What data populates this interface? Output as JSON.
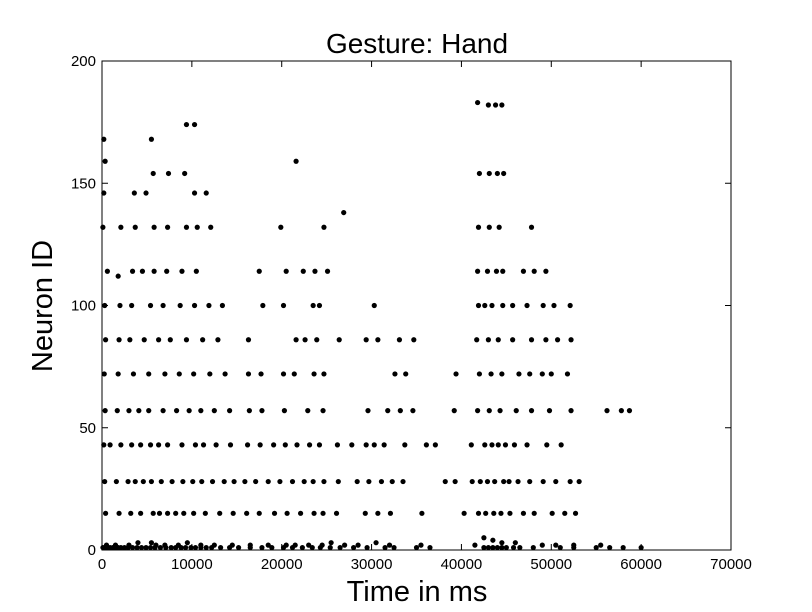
{
  "chart_data": {
    "type": "scatter",
    "title": "Gesture: Hand",
    "xlabel": "Time in ms",
    "ylabel": "Neuron ID",
    "xlim": [
      0,
      70000
    ],
    "ylim": [
      0,
      200
    ],
    "xticks": [
      0,
      10000,
      20000,
      30000,
      40000,
      50000,
      60000,
      70000
    ],
    "yticks": [
      0,
      50,
      100,
      150,
      200
    ],
    "xtick_labels": [
      "0",
      "10000",
      "20000",
      "30000",
      "40000",
      "50000",
      "60000",
      "70000"
    ],
    "ytick_labels": [
      "0",
      "50",
      "100",
      "150",
      "200"
    ],
    "grid": false,
    "marker_color": "#000000",
    "series": [
      {
        "x": [
          100,
          300,
          600,
          900,
          1200,
          1500,
          1800,
          2100,
          2500,
          2900,
          3400,
          3900,
          4400,
          4900,
          5400,
          5900,
          6500,
          7100,
          7700,
          8200,
          8800,
          9300,
          9900,
          10400,
          11000,
          11600,
          12200,
          13200,
          14200,
          15200,
          16500,
          17800,
          18900,
          20200,
          21200,
          22300,
          23400,
          24300,
          25400,
          26500,
          28000,
          29500,
          31500,
          32500,
          35000,
          36500,
          42500,
          43000,
          43500,
          44000,
          44500,
          45000,
          45800,
          46500,
          48000,
          51000,
          52500,
          55000,
          56500,
          58000,
          60000,
          500,
          1500,
          3000,
          4000,
          5500,
          6000,
          7000,
          8500,
          9500,
          11000,
          12500,
          14500,
          16500,
          18500,
          20500,
          21500,
          23000,
          24500,
          25500,
          27000,
          28500,
          30500,
          32000,
          35500,
          41500,
          42500,
          43500,
          44500,
          46000,
          49000,
          50500,
          52500,
          55500,
          400,
          1900,
          3200,
          4300,
          5700,
          6400,
          7300,
          8200,
          9100,
          10200,
          11500,
          13100,
          14600,
          16100,
          17500,
          19200,
          20600,
          22100,
          23600,
          24600,
          26100,
          29300,
          30700,
          32100,
          35600,
          40300,
          41900,
          42700,
          43600,
          44400,
          45400,
          46900,
          48100,
          50100,
          51500,
          52700,
          300,
          1600,
          2900,
          3700,
          4600,
          5500,
          6600,
          7800,
          9000,
          10100,
          11100,
          12300,
          13600,
          14700,
          15900,
          17100,
          18500,
          19800,
          21200,
          22500,
          23500,
          24700,
          26300,
          28400,
          29700,
          31100,
          32300,
          33500,
          38200,
          39300,
          41200,
          42100,
          42900,
          43700,
          44700,
          45300,
          46300,
          47600,
          49100,
          50500,
          52100,
          53100,
          200,
          900,
          2100,
          3300,
          4300,
          5400,
          6300,
          7300,
          8900,
          10400,
          11300,
          12700,
          14300,
          16200,
          17600,
          19100,
          20400,
          21700,
          23100,
          24200,
          26200,
          27800,
          29400,
          30300,
          31400,
          33700,
          36100,
          37100,
          41100,
          42600,
          43400,
          44100,
          44900,
          45900,
          47300,
          49500,
          51100,
          350,
          1700,
          3000,
          4100,
          5200,
          6800,
          8300,
          9700,
          11000,
          12500,
          14200,
          16400,
          17800,
          20300,
          22900,
          24600,
          29600,
          31800,
          33200,
          34600,
          39200,
          41800,
          43100,
          44300,
          46100,
          47800,
          49800,
          52200,
          56200,
          57800,
          58700,
          250,
          1800,
          3500,
          5200,
          7000,
          8600,
          10200,
          12000,
          13700,
          16300,
          17700,
          20200,
          21400,
          23600,
          24700,
          32600,
          33800,
          39400,
          42000,
          43300,
          44500,
          46400,
          47600,
          49000,
          50000,
          51800,
          400,
          1900,
          3100,
          4700,
          6300,
          7600,
          9400,
          11200,
          12900,
          16300,
          21600,
          22600,
          23900,
          26400,
          29400,
          30700,
          33100,
          34700,
          41700,
          43000,
          44100,
          45700,
          47800,
          49400,
          50700,
          52200,
          300,
          2000,
          3300,
          5400,
          6800,
          8700,
          10300,
          11900,
          13400,
          17900,
          20200,
          23500,
          24200,
          30300,
          41900,
          42600,
          43400,
          44600,
          45700,
          47300,
          49100,
          50300,
          52100,
          600,
          1800,
          3400,
          4500,
          5800,
          7200,
          8900,
          10500,
          17500,
          20500,
          22400,
          23700,
          25100,
          41800,
          42900,
          43900,
          44600,
          46900,
          48100,
          49400,
          100,
          2100,
          3700,
          5800,
          7300,
          9400,
          10600,
          12100,
          19900,
          24700,
          41900,
          43100,
          44200,
          47800,
          200,
          3600,
          4900,
          10300,
          11600,
          350,
          5700,
          7400,
          9200,
          21600,
          26900,
          200,
          5500,
          9400,
          10300,
          42000,
          43100,
          44000,
          44700,
          41800,
          43000,
          43800,
          44500
        ],
        "y": [
          1,
          1,
          1,
          1,
          1,
          1,
          1,
          1,
          1,
          1,
          1,
          1,
          1,
          1,
          1,
          1,
          1,
          1,
          1,
          1,
          1,
          1,
          1,
          1,
          1,
          1,
          1,
          1,
          1,
          1,
          1,
          1,
          1,
          1,
          1,
          1,
          1,
          1,
          1,
          1,
          1,
          1,
          1,
          1,
          1,
          1,
          1,
          1,
          1,
          1,
          1,
          1,
          1,
          1,
          1,
          1,
          1,
          1,
          1,
          1,
          1,
          2,
          2,
          2,
          3,
          3,
          2,
          2,
          2,
          3,
          2,
          2,
          2,
          2,
          2,
          2,
          2,
          2,
          2,
          3,
          2,
          2,
          3,
          2,
          2,
          2,
          5,
          4,
          3,
          3,
          2,
          2,
          2,
          2,
          15,
          15,
          15,
          15,
          15,
          15,
          15,
          15,
          15,
          15,
          15,
          15,
          15,
          15,
          15,
          15,
          15,
          15,
          15,
          15,
          15,
          15,
          15,
          15,
          15,
          15,
          15,
          15,
          15,
          15,
          15,
          15,
          15,
          15,
          15,
          15,
          28,
          28,
          28,
          28,
          28,
          28,
          28,
          28,
          28,
          28,
          28,
          28,
          28,
          28,
          28,
          28,
          28,
          28,
          28,
          28,
          28,
          28,
          28,
          28,
          28,
          28,
          28,
          28,
          28,
          28,
          28,
          28,
          28,
          28,
          28,
          28,
          28,
          28,
          28,
          28,
          28,
          28,
          43,
          43,
          43,
          43,
          43,
          43,
          43,
          43,
          43,
          43,
          43,
          43,
          43,
          43,
          43,
          43,
          43,
          43,
          43,
          43,
          43,
          43,
          43,
          43,
          43,
          43,
          43,
          43,
          43,
          43,
          43,
          43,
          43,
          43,
          43,
          43,
          43,
          57,
          57,
          57,
          57,
          57,
          57,
          57,
          57,
          57,
          57,
          57,
          57,
          57,
          57,
          57,
          57,
          57,
          57,
          57,
          57,
          57,
          57,
          57,
          57,
          57,
          57,
          57,
          57,
          57,
          57,
          57,
          72,
          72,
          72,
          72,
          72,
          72,
          72,
          72,
          72,
          72,
          72,
          72,
          72,
          72,
          72,
          72,
          72,
          72,
          72,
          72,
          72,
          72,
          72,
          72,
          72,
          72,
          86,
          86,
          86,
          86,
          86,
          86,
          86,
          86,
          86,
          86,
          86,
          86,
          86,
          86,
          86,
          86,
          86,
          86,
          86,
          86,
          86,
          86,
          86,
          86,
          86,
          86,
          100,
          100,
          100,
          100,
          100,
          100,
          100,
          100,
          100,
          100,
          100,
          100,
          100,
          100,
          100,
          100,
          100,
          100,
          100,
          100,
          100,
          100,
          100,
          114,
          112,
          114,
          114,
          114,
          114,
          114,
          114,
          114,
          114,
          114,
          114,
          114,
          114,
          114,
          114,
          114,
          114,
          114,
          114,
          132,
          132,
          132,
          132,
          132,
          132,
          132,
          132,
          132,
          132,
          132,
          132,
          132,
          132,
          146,
          146,
          146,
          146,
          146,
          159,
          154,
          154,
          154,
          159,
          138,
          168,
          168,
          174,
          174,
          154,
          154,
          154,
          154,
          183,
          182,
          182,
          182
        ]
      }
    ]
  }
}
